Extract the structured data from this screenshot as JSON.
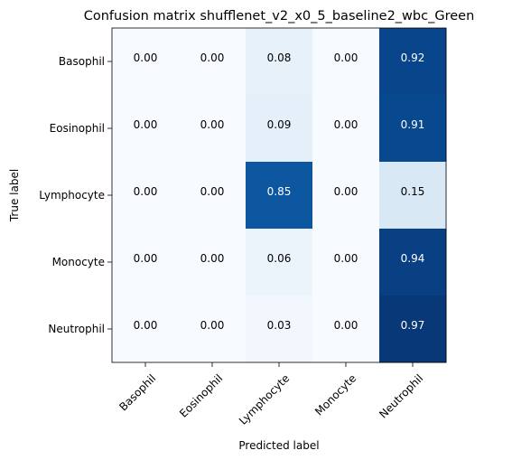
{
  "chart_data": {
    "type": "heatmap",
    "title": "Confusion matrix shufflenet_v2_x0_5_baseline2_wbc_Green",
    "xlabel": "Predicted label",
    "ylabel": "True label",
    "x_categories": [
      "Basophil",
      "Eosinophil",
      "Lymphocyte",
      "Monocyte",
      "Neutrophil"
    ],
    "y_categories": [
      "Basophil",
      "Eosinophil",
      "Lymphocyte",
      "Monocyte",
      "Neutrophil"
    ],
    "values": [
      [
        0.0,
        0.0,
        0.08,
        0.0,
        0.92
      ],
      [
        0.0,
        0.0,
        0.09,
        0.0,
        0.91
      ],
      [
        0.0,
        0.0,
        0.85,
        0.0,
        0.15
      ],
      [
        0.0,
        0.0,
        0.06,
        0.0,
        0.94
      ],
      [
        0.0,
        0.0,
        0.03,
        0.0,
        0.97
      ]
    ],
    "cell_labels": [
      [
        "0.00",
        "0.00",
        "0.08",
        "0.00",
        "0.92"
      ],
      [
        "0.00",
        "0.00",
        "0.09",
        "0.00",
        "0.91"
      ],
      [
        "0.00",
        "0.00",
        "0.85",
        "0.00",
        "0.15"
      ],
      [
        "0.00",
        "0.00",
        "0.06",
        "0.00",
        "0.94"
      ],
      [
        "0.00",
        "0.00",
        "0.03",
        "0.00",
        "0.97"
      ]
    ],
    "colormap": "Blues",
    "value_range": [
      0,
      1
    ],
    "grid": false
  }
}
